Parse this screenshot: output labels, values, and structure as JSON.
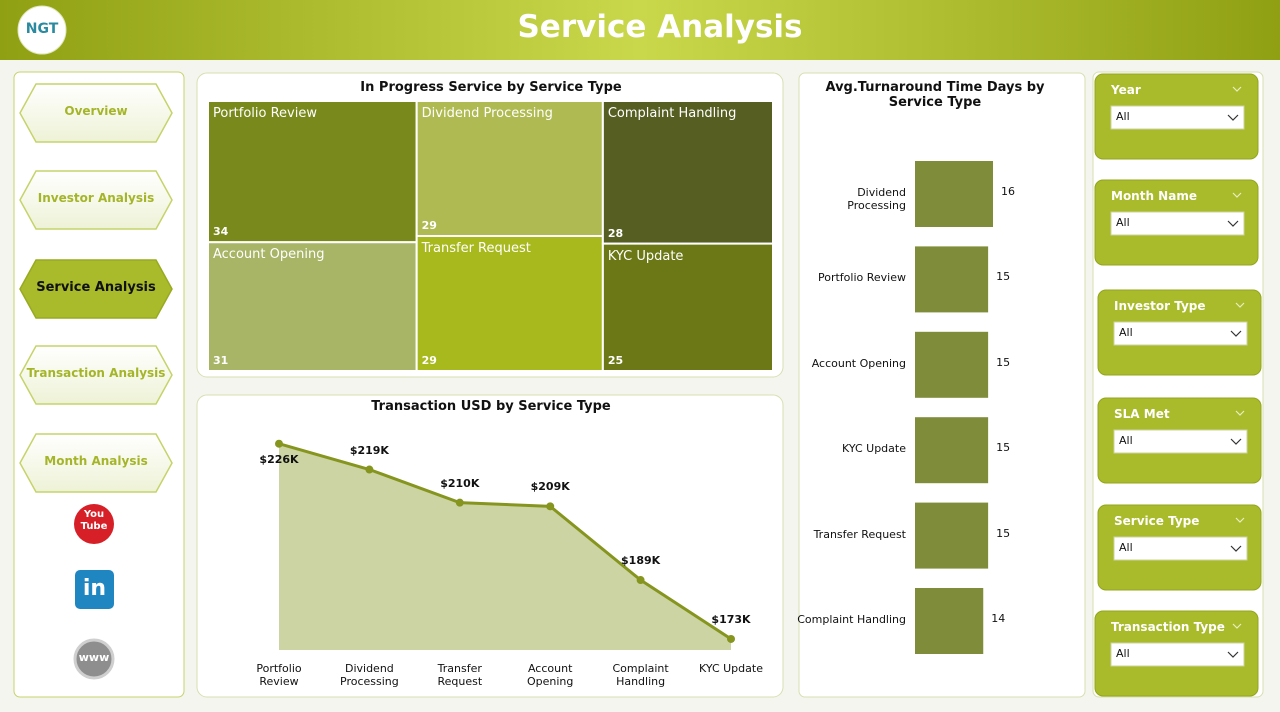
{
  "header": {
    "title": "Service Analysis",
    "logo": "NGT"
  },
  "nav": {
    "items": [
      "Overview",
      "Investor Analysis",
      "Service Analysis",
      "Transaction Analysis",
      "Month Analysis"
    ],
    "active_index": 2
  },
  "social": {
    "youtube": "You Tube",
    "linkedin": "in",
    "web": "www"
  },
  "chart_data": [
    {
      "type": "treemap",
      "title": "In Progress Service by Service Type",
      "categories": [
        "Portfolio Review",
        "Dividend Processing",
        "Complaint Handling",
        "Account Opening",
        "Transfer Request",
        "KYC Update"
      ],
      "values": [
        34,
        29,
        28,
        31,
        29,
        25
      ],
      "colors": [
        "#7a891b",
        "#afbb52",
        "#565e22",
        "#a8b466",
        "#a8b91e",
        "#6b7815"
      ]
    },
    {
      "type": "area",
      "title": "Transaction USD by Service Type",
      "categories": [
        "Portfolio Review",
        "Dividend Processing",
        "Transfer Request",
        "Account Opening",
        "Complaint Handling",
        "KYC Update"
      ],
      "values": [
        226000,
        219000,
        210000,
        209000,
        189000,
        173000
      ],
      "value_labels": [
        "$226K",
        "$219K",
        "$210K",
        "$209K",
        "$189K",
        "$173K"
      ],
      "ylim": [
        170000,
        230000
      ],
      "color": "#86951e",
      "fill": "#ccd4a3"
    },
    {
      "type": "hbar",
      "title": "Avg.Turnaround Time Days by Service Type",
      "categories": [
        "Dividend Processing",
        "Portfolio Review",
        "Account Opening",
        "KYC Update",
        "Transfer Request",
        "Complaint Handling"
      ],
      "values": [
        16,
        15,
        15,
        15,
        15,
        14
      ],
      "xlim": [
        0,
        16
      ],
      "color": "#7f8c3a"
    }
  ],
  "filters": [
    {
      "label": "Year",
      "value": "All"
    },
    {
      "label": "Month Name",
      "value": "All"
    },
    {
      "label": "Investor Type",
      "value": "All"
    },
    {
      "label": "SLA Met",
      "value": "All"
    },
    {
      "label": "Service Type",
      "value": "All"
    },
    {
      "label": "Transaction Type",
      "value": "All"
    }
  ]
}
